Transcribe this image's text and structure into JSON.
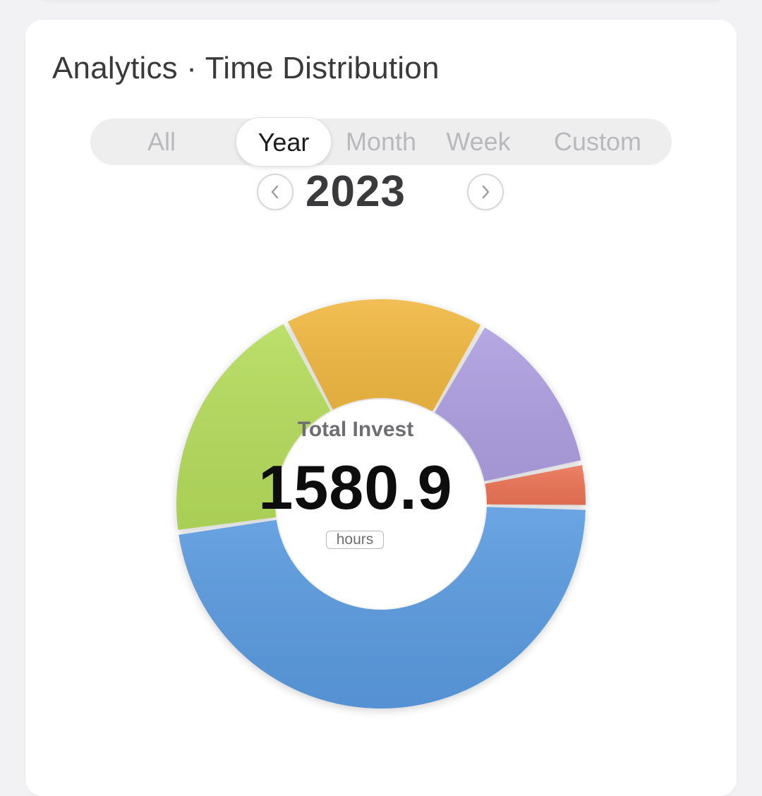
{
  "card": {
    "title": "Analytics · Time Distribution"
  },
  "segments": [
    {
      "label": "All",
      "active": false
    },
    {
      "label": "Year",
      "active": true
    },
    {
      "label": "Month",
      "active": false
    },
    {
      "label": "Week",
      "active": false
    },
    {
      "label": "Custom",
      "active": false
    }
  ],
  "period": {
    "value": "2023",
    "prev_icon": "chevron-left-icon",
    "next_icon": "chevron-right-icon"
  },
  "summary": {
    "label": "Total Invest",
    "value": "1580.9",
    "unit": "hours"
  },
  "chart_data": {
    "type": "pie",
    "title": "",
    "slices": [
      {
        "color": "#5b9be0",
        "percent": 47.5
      },
      {
        "color": "#b5dc5c",
        "percent": 19.5
      },
      {
        "color": "#f0b842",
        "percent": 16.0
      },
      {
        "color": "#ae9fe0",
        "percent": 13.5
      },
      {
        "color": "#eb7355",
        "percent": 3.5
      }
    ]
  }
}
